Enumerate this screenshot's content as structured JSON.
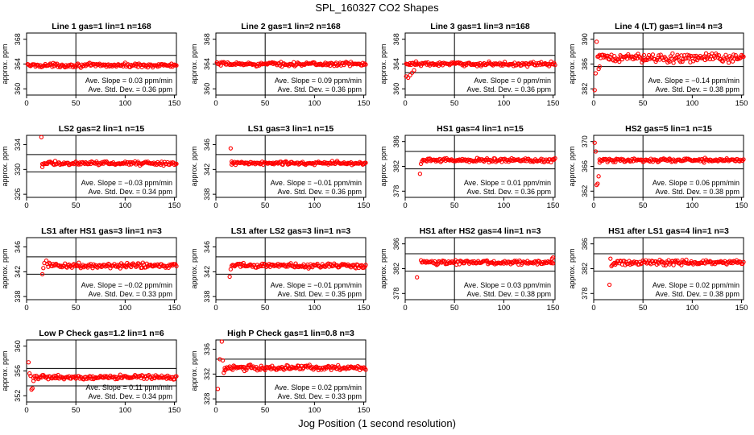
{
  "page": {
    "title": "SPL_160327  CO2 Shapes",
    "xlabel": "Jog Position (1 second resolution)"
  },
  "chart_data": [
    {
      "type": "scatter",
      "title": "Line 1 gas=1 lin=1 n=168",
      "ylabel": "approx. ppm",
      "xlim": [
        0,
        152
      ],
      "ylim": [
        359,
        369
      ],
      "yticks": [
        360,
        364,
        368
      ],
      "xticks": [
        0,
        50,
        100,
        150
      ],
      "ref_lines": [
        362.6,
        365.4
      ],
      "x_start": 1,
      "x_end": 152,
      "level": 363.8,
      "noise": 0.15,
      "outliers": [],
      "slope_text": "Ave. Slope = 0.03  ppm/min",
      "sd_text": "Ave. Std. Dev. = 0.36  ppm"
    },
    {
      "type": "scatter",
      "title": "Line 2 gas=1 lin=2 n=168",
      "ylabel": "approx. ppm",
      "xlim": [
        0,
        152
      ],
      "ylim": [
        359,
        369
      ],
      "yticks": [
        360,
        364,
        368
      ],
      "xticks": [
        0,
        50,
        100,
        150
      ],
      "ref_lines": [
        362.6,
        365.4
      ],
      "x_start": 1,
      "x_end": 152,
      "level": 364.0,
      "noise": 0.15,
      "outliers": [],
      "slope_text": "Ave. Slope = 0.09  ppm/min",
      "sd_text": "Ave. Std. Dev. = 0.36  ppm"
    },
    {
      "type": "scatter",
      "title": "Line 3 gas=1 lin=3 n=168",
      "ylabel": "approx. ppm",
      "xlim": [
        0,
        152
      ],
      "ylim": [
        359,
        369
      ],
      "yticks": [
        360,
        364,
        368
      ],
      "xticks": [
        0,
        50,
        100,
        150
      ],
      "ref_lines": [
        362.6,
        365.4
      ],
      "x_start": 1,
      "x_end": 152,
      "level": 364.0,
      "noise": 0.15,
      "outliers": [
        [
          1,
          362.0
        ],
        [
          3,
          361.8
        ],
        [
          5,
          362.2
        ],
        [
          7,
          362.6
        ],
        [
          9,
          363.0
        ],
        [
          11,
          364.4
        ]
      ],
      "slope_text": "Ave. Slope = 0  ppm/min",
      "sd_text": "Ave. Std. Dev. = 0.36  ppm"
    },
    {
      "type": "scatter",
      "title": "Line 4 (LT) gas=1 lin=4 n=3",
      "ylabel": "approx. ppm",
      "xlim": [
        0,
        152
      ],
      "ylim": [
        381,
        391
      ],
      "yticks": [
        382,
        386,
        390
      ],
      "xticks": [
        0,
        50,
        100,
        150
      ],
      "ref_lines": [
        385.6,
        388.4
      ],
      "x_start": 5,
      "x_end": 152,
      "level": 387.0,
      "noise": 0.35,
      "outliers": [
        [
          1,
          381.8
        ],
        [
          2,
          384.5
        ],
        [
          3,
          389.6
        ],
        [
          4,
          387.2
        ],
        [
          5,
          385.2
        ],
        [
          6,
          385.6
        ]
      ],
      "slope_text": "Ave. Slope = −0.14  ppm/min",
      "sd_text": "Ave. Std. Dev. = 0.38  ppm"
    },
    {
      "type": "scatter",
      "title": "LS2 gas=2 lin=1 n=15",
      "ylabel": "approx. ppm",
      "xlim": [
        0,
        152
      ],
      "ylim": [
        325.5,
        335.5
      ],
      "yticks": [
        326,
        330,
        334
      ],
      "xticks": [
        0,
        50,
        100,
        150
      ],
      "ref_lines": [
        329.6,
        332.4
      ],
      "x_start": 16,
      "x_end": 152,
      "level": 331.0,
      "noise": 0.15,
      "outliers": [
        [
          15,
          335.2
        ],
        [
          16,
          330.4
        ]
      ],
      "slope_text": "Ave. Slope = −0.03  ppm/min",
      "sd_text": "Ave. Std. Dev. = 0.34  ppm"
    },
    {
      "type": "scatter",
      "title": "LS1 gas=3 lin=1 n=15",
      "ylabel": "approx. ppm",
      "xlim": [
        0,
        152
      ],
      "ylim": [
        337.5,
        347.5
      ],
      "yticks": [
        338,
        342,
        346
      ],
      "xticks": [
        0,
        50,
        100,
        150
      ],
      "ref_lines": [
        341.6,
        344.4
      ],
      "x_start": 16,
      "x_end": 152,
      "level": 343.0,
      "noise": 0.15,
      "outliers": [
        [
          15,
          345.4
        ],
        [
          16,
          342.8
        ]
      ],
      "slope_text": "Ave. Slope = −0.01  ppm/min",
      "sd_text": "Ave. Std. Dev. = 0.36  ppm"
    },
    {
      "type": "scatter",
      "title": "HS1 gas=4 lin=1 n=15",
      "ylabel": "approx. ppm",
      "xlim": [
        0,
        152
      ],
      "ylim": [
        377,
        387
      ],
      "yticks": [
        378,
        382,
        386
      ],
      "xticks": [
        0,
        50,
        100,
        150
      ],
      "ref_lines": [
        381.6,
        384.4
      ],
      "x_start": 18,
      "x_end": 152,
      "level": 383.0,
      "noise": 0.15,
      "outliers": [
        [
          15,
          380.8
        ],
        [
          16,
          382.4
        ],
        [
          17,
          382.8
        ]
      ],
      "slope_text": "Ave. Slope = 0.01  ppm/min",
      "sd_text": "Ave. Std. Dev. = 0.36  ppm"
    },
    {
      "type": "scatter",
      "title": "HS2 gas=5 lin=1 n=15",
      "ylabel": "approx. ppm",
      "xlim": [
        0,
        152
      ],
      "ylim": [
        361,
        371
      ],
      "yticks": [
        362,
        366,
        370
      ],
      "xticks": [
        0,
        50,
        100,
        150
      ],
      "ref_lines": [
        365.6,
        368.4
      ],
      "x_start": 6,
      "x_end": 152,
      "level": 367.0,
      "noise": 0.15,
      "outliers": [
        [
          1,
          369.8
        ],
        [
          2,
          368.4
        ],
        [
          3,
          363.0
        ],
        [
          4,
          363.2
        ],
        [
          5,
          364.4
        ],
        [
          6,
          366.6
        ]
      ],
      "slope_text": "Ave. Slope = 0.06  ppm/min",
      "sd_text": "Ave. Std. Dev. = 0.38  ppm"
    },
    {
      "type": "scatter",
      "title": "LS1 after HS1 gas=3 lin=1 n=3",
      "ylabel": "approx. ppm",
      "xlim": [
        0,
        152
      ],
      "ylim": [
        337.5,
        347.5
      ],
      "yticks": [
        338,
        342,
        346
      ],
      "xticks": [
        0,
        50,
        100,
        150
      ],
      "ref_lines": [
        341.6,
        344.4
      ],
      "x_start": 21,
      "x_end": 152,
      "level": 343.0,
      "noise": 0.2,
      "outliers": [
        [
          16,
          341.6
        ],
        [
          17,
          342.6
        ],
        [
          18,
          343.4
        ],
        [
          20,
          343.8
        ]
      ],
      "slope_text": "Ave. Slope = −0.02  ppm/min",
      "sd_text": "Ave. Std. Dev. = 0.33  ppm"
    },
    {
      "type": "scatter",
      "title": "LS1 after LS2 gas=3 lin=1 n=3",
      "ylabel": "approx. ppm",
      "xlim": [
        0,
        152
      ],
      "ylim": [
        337.5,
        347.5
      ],
      "yticks": [
        338,
        342,
        346
      ],
      "xticks": [
        0,
        50,
        100,
        150
      ],
      "ref_lines": [
        341.6,
        344.4
      ],
      "x_start": 16,
      "x_end": 152,
      "level": 343.0,
      "noise": 0.2,
      "outliers": [
        [
          14,
          341.2
        ],
        [
          15,
          342.4
        ]
      ],
      "slope_text": "Ave. Slope = −0.01  ppm/min",
      "sd_text": "Ave. Std. Dev. = 0.35  ppm"
    },
    {
      "type": "scatter",
      "title": "HS1 after HS2 gas=4 lin=1 n=3",
      "ylabel": "approx. ppm",
      "xlim": [
        0,
        152
      ],
      "ylim": [
        377,
        387
      ],
      "yticks": [
        378,
        382,
        386
      ],
      "xticks": [
        0,
        50,
        100,
        150
      ],
      "ref_lines": [
        381.6,
        384.4
      ],
      "x_start": 16,
      "x_end": 150,
      "level": 383.0,
      "noise": 0.15,
      "outliers": [
        [
          12,
          380.6
        ],
        [
          149,
          383.6
        ],
        [
          150,
          383.8
        ]
      ],
      "slope_text": "Ave. Slope = 0.03  ppm/min",
      "sd_text": "Ave. Std. Dev. = 0.38  ppm"
    },
    {
      "type": "scatter",
      "title": "HS1 after LS1 gas=4 lin=1 n=3",
      "ylabel": "approx. ppm",
      "xlim": [
        0,
        152
      ],
      "ylim": [
        377,
        387
      ],
      "yticks": [
        378,
        382,
        386
      ],
      "xticks": [
        0,
        50,
        100,
        150
      ],
      "ref_lines": [
        381.6,
        384.4
      ],
      "x_start": 20,
      "x_end": 152,
      "level": 383.0,
      "noise": 0.2,
      "outliers": [
        [
          16,
          379.4
        ],
        [
          17,
          383.6
        ],
        [
          18,
          382.4
        ],
        [
          19,
          382.6
        ]
      ],
      "slope_text": "Ave. Slope = 0.02  ppm/min",
      "sd_text": "Ave. Std. Dev. = 0.38  ppm"
    },
    {
      "type": "scatter",
      "title": "Low P Check gas=1.2 lin=1 n=6",
      "ylabel": "approx. ppm",
      "xlim": [
        0,
        152
      ],
      "ylim": [
        351,
        361
      ],
      "yticks": [
        352,
        356,
        360
      ],
      "xticks": [
        0,
        50,
        100,
        150
      ],
      "ref_lines": [
        353.6,
        356.4
      ],
      "x_start": 7,
      "x_end": 152,
      "level": 355.0,
      "noise": 0.15,
      "outliers": [
        [
          2,
          357.4
        ],
        [
          3,
          355.6
        ],
        [
          4,
          355.2
        ],
        [
          5,
          353.0
        ],
        [
          6,
          353.2
        ],
        [
          7,
          354.4
        ]
      ],
      "slope_text": "Ave. Slope = 0.11  ppm/min",
      "sd_text": "Ave. Std. Dev. = 0.34  ppm"
    },
    {
      "type": "scatter",
      "title": "High P Check gas=1 lin=0.8 n=3",
      "ylabel": "approx. ppm",
      "xlim": [
        0,
        152
      ],
      "ylim": [
        327.5,
        337.5
      ],
      "yticks": [
        328,
        332,
        336
      ],
      "xticks": [
        0,
        50,
        100,
        150
      ],
      "ref_lines": [
        331.6,
        334.4
      ],
      "x_start": 9,
      "x_end": 152,
      "level": 333.0,
      "noise": 0.2,
      "outliers": [
        [
          2,
          329.6
        ],
        [
          4,
          334.4
        ],
        [
          6,
          337.4
        ],
        [
          7,
          334.2
        ],
        [
          8,
          332.2
        ],
        [
          9,
          332.6
        ]
      ],
      "slope_text": "Ave. Slope = 0.02  ppm/min",
      "sd_text": "Ave. Std. Dev. = 0.33  ppm"
    }
  ]
}
